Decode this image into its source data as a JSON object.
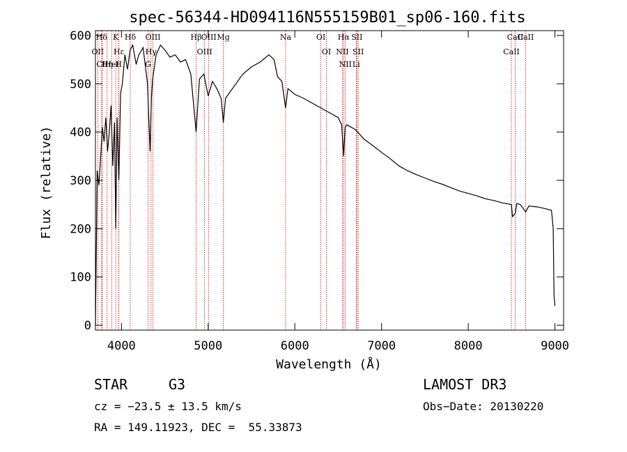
{
  "chart_data": {
    "type": "line",
    "title": "spec-56344-HD094116N555159B01_sp06-160.fits",
    "xlabel": "Wavelength (Å)",
    "ylabel": "Flux (relative)",
    "xlim": [
      3700,
      9100
    ],
    "ylim": [
      -10,
      610
    ],
    "x_ticks": [
      4000,
      5000,
      6000,
      7000,
      8000,
      9000
    ],
    "y_ticks": [
      0,
      100,
      200,
      300,
      400,
      500,
      600
    ],
    "series": [
      {
        "name": "spectrum",
        "x": [
          3700,
          3720,
          3740,
          3760,
          3780,
          3800,
          3820,
          3840,
          3860,
          3880,
          3900,
          3920,
          3935,
          3950,
          3970,
          3990,
          4010,
          4040,
          4070,
          4100,
          4130,
          4170,
          4200,
          4250,
          4300,
          4330,
          4345,
          4360,
          4400,
          4450,
          4500,
          4560,
          4620,
          4680,
          4740,
          4800,
          4861,
          4900,
          4950,
          5000,
          5050,
          5100,
          5150,
          5175,
          5200,
          5300,
          5400,
          5500,
          5600,
          5700,
          5760,
          5800,
          5850,
          5893,
          5920,
          6000,
          6100,
          6200,
          6300,
          6400,
          6500,
          6540,
          6563,
          6580,
          6600,
          6700,
          6800,
          6900,
          7000,
          7100,
          7200,
          7300,
          7400,
          7500,
          7600,
          7700,
          7800,
          7900,
          8000,
          8100,
          8200,
          8300,
          8400,
          8498,
          8510,
          8542,
          8560,
          8600,
          8662,
          8700,
          8800,
          8900,
          8960,
          8980,
          8990,
          9000
        ],
        "y": [
          0,
          320,
          290,
          350,
          410,
          380,
          430,
          360,
          400,
          455,
          330,
          420,
          200,
          430,
          300,
          480,
          500,
          560,
          530,
          570,
          580,
          540,
          560,
          575,
          500,
          360,
          470,
          510,
          560,
          580,
          570,
          555,
          560,
          545,
          550,
          520,
          400,
          510,
          520,
          475,
          505,
          490,
          470,
          420,
          470,
          495,
          520,
          535,
          545,
          560,
          550,
          515,
          505,
          450,
          490,
          478,
          470,
          460,
          450,
          440,
          430,
          415,
          350,
          410,
          415,
          405,
          385,
          372,
          358,
          345,
          330,
          320,
          312,
          305,
          298,
          292,
          285,
          278,
          273,
          268,
          262,
          258,
          253,
          250,
          225,
          232,
          252,
          250,
          235,
          247,
          245,
          241,
          238,
          200,
          60,
          40
        ]
      }
    ],
    "line_markers": [
      {
        "label": "Hδ",
        "x": 3771
      },
      {
        "label": "K",
        "x": 3934
      },
      {
        "label": "Hε",
        "x": 3970
      },
      {
        "label": "Hδ",
        "x": 4102
      },
      {
        "label": "OII",
        "x": 3727
      },
      {
        "label": "HeI",
        "x": 3889
      },
      {
        "label": "CII",
        "x": 3780
      },
      {
        "label": "Hη",
        "x": 3835
      },
      {
        "label": "H",
        "x": 3968
      },
      {
        "label": "OIII",
        "x": 4363
      },
      {
        "label": "Hγ",
        "x": 4341
      },
      {
        "label": "G",
        "x": 4307
      },
      {
        "label": "OIII",
        "x": 5007
      },
      {
        "label": "OIII",
        "x": 4959
      },
      {
        "label": "Hβ",
        "x": 4861
      },
      {
        "label": "Mg",
        "x": 5175
      },
      {
        "label": "Na",
        "x": 5893
      },
      {
        "label": "OI",
        "x": 6300
      },
      {
        "label": "OI",
        "x": 6364
      },
      {
        "label": "Hα",
        "x": 6563
      },
      {
        "label": "NII",
        "x": 6548
      },
      {
        "label": "NII",
        "x": 6583
      },
      {
        "label": "SII",
        "x": 6716
      },
      {
        "label": "SII",
        "x": 6731
      },
      {
        "label": "Li",
        "x": 6708
      },
      {
        "label": "CaII",
        "x": 8542
      },
      {
        "label": "CaII",
        "x": 8498
      },
      {
        "label": "CaII",
        "x": 8662
      }
    ],
    "marker_color": "#cc0000"
  },
  "info": {
    "object_class": "STAR",
    "subclass": "G3",
    "survey": "LAMOST DR3",
    "cz": "cz = −23.5 ± 13.5 km/s",
    "obs_date": "Obs−Date: 20130220",
    "radec": "RA = 149.11923, DEC =  55.33873"
  }
}
